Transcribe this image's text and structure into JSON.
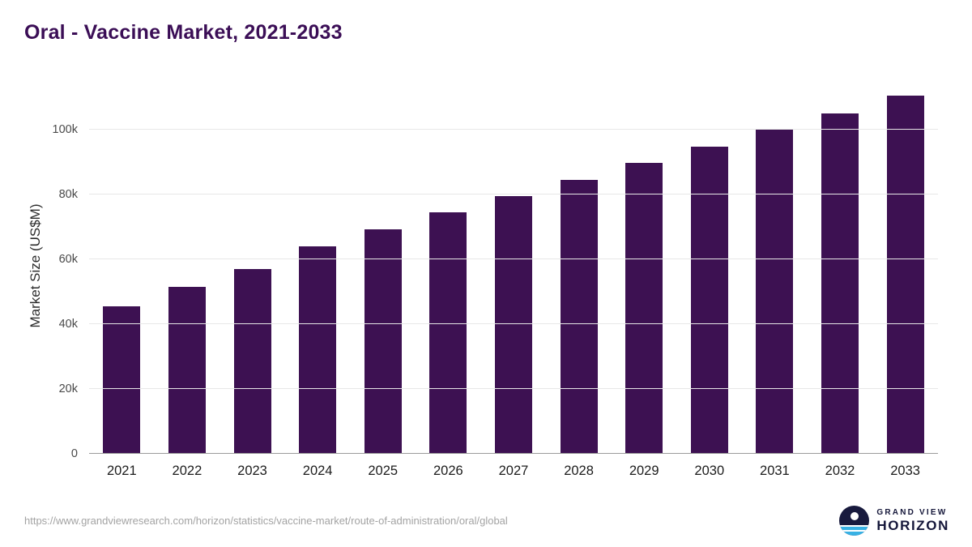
{
  "header": {
    "title": "Oral - Vaccine Market, 2021-2033"
  },
  "chart_data": {
    "type": "bar",
    "title": "Oral - Vaccine Market, 2021-2033",
    "categories": [
      "2021",
      "2022",
      "2023",
      "2024",
      "2025",
      "2026",
      "2027",
      "2028",
      "2029",
      "2030",
      "2031",
      "2032",
      "2033"
    ],
    "values": [
      45500,
      51400,
      57100,
      64000,
      69200,
      74400,
      79600,
      84600,
      89700,
      94800,
      100000,
      105100,
      110600
    ],
    "xlabel": "",
    "ylabel": "Market Size (US$M)",
    "ylim": [
      0,
      115000
    ],
    "yticks": [
      {
        "value": 0,
        "label": "0"
      },
      {
        "value": 20000,
        "label": "20k"
      },
      {
        "value": 40000,
        "label": "40k"
      },
      {
        "value": 60000,
        "label": "60k"
      },
      {
        "value": 80000,
        "label": "80k"
      },
      {
        "value": 100000,
        "label": "100k"
      }
    ],
    "grid": true,
    "legend": false,
    "bar_color": "#3d1152",
    "title_color": "#3b0e56"
  },
  "footer": {
    "source_url": "https://www.grandviewresearch.com/horizon/statistics/vaccine-market/route-of-administration/oral/global",
    "logo": {
      "line1": "GRAND VIEW",
      "line2": "HORIZON",
      "icon": "horizon-sun-over-water-icon",
      "accent_color": "#38b1e4",
      "navy_color": "#181a3d"
    }
  }
}
